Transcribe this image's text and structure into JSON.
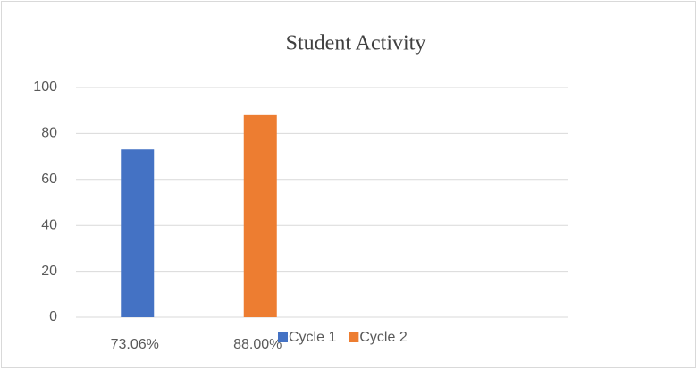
{
  "chart_data": {
    "type": "bar",
    "title": "Student Activity",
    "categories": [
      "73.06%",
      "88.00%",
      null,
      null
    ],
    "series": [
      {
        "name": "Cycle 1",
        "color": "#4472c4",
        "values": [
          73.06,
          null,
          null,
          null
        ]
      },
      {
        "name": "Cycle 2",
        "color": "#ed7d31",
        "values": [
          null,
          88,
          null,
          null
        ]
      }
    ],
    "ylim": [
      0,
      100
    ],
    "yticks": [
      0,
      20,
      40,
      60,
      80,
      100
    ],
    "grid": true,
    "legend": "bottom"
  }
}
